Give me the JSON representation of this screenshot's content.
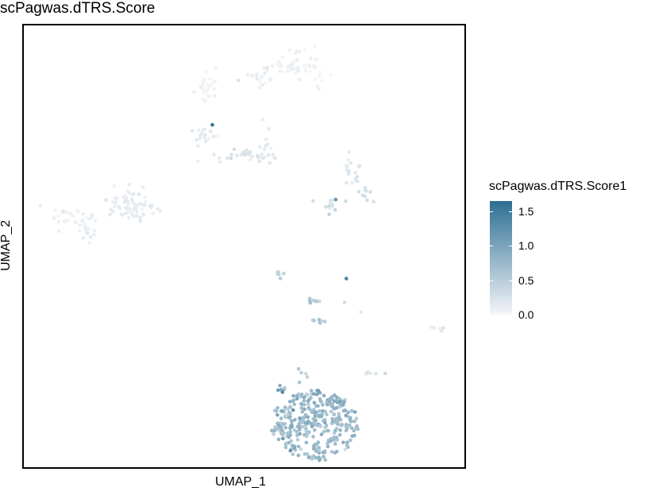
{
  "chart_data": {
    "type": "scatter",
    "title": "scPagwas.dTRS.Score",
    "xlabel": "UMAP_1",
    "ylabel": "UMAP_2",
    "xlim": [
      0,
      100
    ],
    "ylim": [
      0,
      100
    ],
    "grid": false,
    "legend": {
      "title": "scPagwas.dTRS.Score1",
      "position": "right",
      "type": "colorbar",
      "ticks": [
        {
          "value": 0.0,
          "label": "0.0"
        },
        {
          "value": 0.5,
          "label": "0.5"
        },
        {
          "value": 1.0,
          "label": "1.0"
        },
        {
          "value": 1.5,
          "label": "1.5"
        }
      ],
      "range": [
        0,
        1.65
      ],
      "color_low": "#f5f6f8",
      "color_high": "#2d6f92"
    },
    "clusters": [
      {
        "label": "",
        "cx": 11,
        "cy": 56.5,
        "sx": 3,
        "sy": 1.4,
        "n": 30,
        "score": 0.08
      },
      {
        "label": "",
        "cx": 14.5,
        "cy": 53,
        "sx": 0.8,
        "sy": 1.5,
        "n": 12,
        "score": 0.1
      },
      {
        "label": "",
        "cx": 23,
        "cy": 60,
        "sx": 2,
        "sy": 2,
        "n": 40,
        "score": 0.12
      },
      {
        "label": "",
        "cx": 27.5,
        "cy": 58,
        "sx": 3,
        "sy": 1.2,
        "n": 30,
        "score": 0.12
      },
      {
        "label": "",
        "cx": 42,
        "cy": 86,
        "sx": 1.2,
        "sy": 2.5,
        "n": 25,
        "score": 0.05
      },
      {
        "label": "",
        "cx": 62,
        "cy": 91,
        "sx": 3.5,
        "sy": 2.2,
        "n": 55,
        "score": 0.05
      },
      {
        "label": "",
        "cx": 53.5,
        "cy": 88,
        "sx": 2,
        "sy": 1.2,
        "n": 15,
        "score": 0.12
      },
      {
        "label": "",
        "cx": 41,
        "cy": 75,
        "sx": 1.8,
        "sy": 1.2,
        "n": 18,
        "score": 0.15
      },
      {
        "label": "",
        "cx": 48.5,
        "cy": 70.5,
        "sx": 2.5,
        "sy": 1.2,
        "n": 20,
        "score": 0.2
      },
      {
        "label": "",
        "cx": 55.5,
        "cy": 72.5,
        "sx": 1.2,
        "sy": 2.2,
        "n": 18,
        "score": 0.15
      },
      {
        "label": "",
        "cx": 75,
        "cy": 67.5,
        "sx": 1.5,
        "sy": 2,
        "n": 18,
        "score": 0.2
      },
      {
        "label": "",
        "cx": 77.5,
        "cy": 61.5,
        "sx": 1.2,
        "sy": 0.8,
        "n": 8,
        "score": 0.25
      },
      {
        "label": "",
        "cx": 70,
        "cy": 59,
        "sx": 1.6,
        "sy": 1.2,
        "n": 14,
        "score": 0.3
      },
      {
        "label": "",
        "cx": 58,
        "cy": 44,
        "sx": 0.6,
        "sy": 0.7,
        "n": 6,
        "score": 0.45
      },
      {
        "label": "",
        "cx": 66,
        "cy": 37.5,
        "sx": 0.8,
        "sy": 0.3,
        "n": 8,
        "score": 0.6
      },
      {
        "label": "",
        "cx": 67.5,
        "cy": 33,
        "sx": 0.8,
        "sy": 0.4,
        "n": 8,
        "score": 0.65
      },
      {
        "label": "",
        "cx": 94,
        "cy": 31,
        "sx": 0.8,
        "sy": 0.4,
        "n": 6,
        "score": 0.15
      },
      {
        "label": "",
        "cx": 78.5,
        "cy": 21.5,
        "sx": 1.2,
        "sy": 0.3,
        "n": 6,
        "score": 0.25
      },
      {
        "label": "",
        "cx": 63.5,
        "cy": 20.5,
        "sx": 0.8,
        "sy": 1,
        "n": 5,
        "score": 0.55
      },
      {
        "label": "",
        "cx": 58,
        "cy": 17.7,
        "sx": 0.4,
        "sy": 0.6,
        "n": 5,
        "score": 1.05
      },
      {
        "label": "",
        "cx": 66,
        "cy": 9.5,
        "sx": 5.5,
        "sy": 4.5,
        "n": 330,
        "score": 0.75
      }
    ],
    "highlights": [
      {
        "x": 42.8,
        "y": 77.5,
        "score": 1.6
      },
      {
        "x": 70.8,
        "y": 60.6,
        "score": 1.2
      },
      {
        "x": 73.2,
        "y": 42.7,
        "score": 1.4
      },
      {
        "x": 72.8,
        "y": 37.3,
        "score": 0.3
      },
      {
        "x": 76.5,
        "y": 35.1,
        "score": 0.15
      },
      {
        "x": 39.5,
        "y": 69.2,
        "score": 0.1
      },
      {
        "x": 58.7,
        "y": 17,
        "score": 1.3
      }
    ]
  }
}
